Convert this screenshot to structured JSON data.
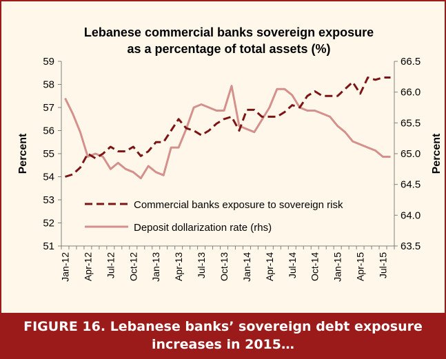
{
  "caption": {
    "line1": "FIGURE 16. Lebanese banks’ sovereign debt exposure",
    "line2": "increases in 2015…"
  },
  "colors": {
    "frame": "#9b1b1b",
    "background": "#fff8ea",
    "exposure_line": "#7b1414",
    "dollarization_line": "#d4908c"
  },
  "chart_data": {
    "type": "line",
    "title": "Lebanese commercial banks sovereign exposure as a percentage of total assets (%)",
    "title_lines": [
      "Lebanese commercial banks sovereign exposure",
      "as a percentage of total assets (%)"
    ],
    "ylabel": "Percent",
    "ylabel_right": "Percent",
    "ylim": [
      51,
      59
    ],
    "yticks": [
      51,
      52,
      53,
      54,
      55,
      56,
      57,
      58,
      59
    ],
    "ylim_right": [
      63.5,
      66.5
    ],
    "yticks_right": [
      "63.5",
      "64.0",
      "64.5",
      "65.0",
      "65.5",
      "66.0",
      "66.5"
    ],
    "x_tick_labels": [
      "Jan-12",
      "Apr-12",
      "Jul-12",
      "Oct-12",
      "Jan-13",
      "Apr-13",
      "Jul-13",
      "Oct-13",
      "Jan-14",
      "Apr-14",
      "Jul-14",
      "Oct-14",
      "Jan-15",
      "Apr-15",
      "Jul-15"
    ],
    "x": [
      "Jan-12",
      "Feb-12",
      "Mar-12",
      "Apr-12",
      "May-12",
      "Jun-12",
      "Jul-12",
      "Aug-12",
      "Sep-12",
      "Oct-12",
      "Nov-12",
      "Dec-12",
      "Jan-13",
      "Feb-13",
      "Mar-13",
      "Apr-13",
      "May-13",
      "Jun-13",
      "Jul-13",
      "Aug-13",
      "Sep-13",
      "Oct-13",
      "Nov-13",
      "Dec-13",
      "Jan-14",
      "Feb-14",
      "Mar-14",
      "Apr-14",
      "May-14",
      "Jun-14",
      "Jul-14",
      "Aug-14",
      "Sep-14",
      "Oct-14",
      "Nov-14",
      "Dec-14",
      "Jan-15",
      "Feb-15",
      "Mar-15",
      "Apr-15",
      "May-15",
      "Jun-15",
      "Jul-15",
      "Aug-15"
    ],
    "grid": false,
    "legend_position": "bottom",
    "series": [
      {
        "name": "Commercial banks exposure to sovereign risk",
        "axis": "left",
        "style": "dashed",
        "values": [
          54.0,
          54.1,
          54.4,
          55.0,
          54.8,
          55.0,
          55.3,
          55.1,
          55.1,
          55.3,
          54.9,
          55.1,
          55.5,
          55.5,
          56.0,
          56.5,
          56.1,
          56.0,
          55.8,
          56.0,
          56.3,
          56.5,
          56.6,
          56.0,
          56.9,
          56.9,
          56.6,
          56.6,
          56.6,
          56.8,
          57.1,
          57.0,
          57.5,
          57.7,
          57.5,
          57.5,
          57.5,
          57.8,
          58.1,
          57.6,
          58.3,
          58.2,
          58.3,
          58.3
        ]
      },
      {
        "name": "Deposit dollarization rate (rhs)",
        "axis": "right",
        "style": "solid",
        "values": [
          65.9,
          65.65,
          65.35,
          64.95,
          65.0,
          64.95,
          64.75,
          64.85,
          64.75,
          64.7,
          64.6,
          64.8,
          64.7,
          64.65,
          65.1,
          65.1,
          65.4,
          65.75,
          65.8,
          65.75,
          65.7,
          65.7,
          66.1,
          65.45,
          65.4,
          65.35,
          65.55,
          65.75,
          66.05,
          66.05,
          65.95,
          65.75,
          65.7,
          65.7,
          65.65,
          65.6,
          65.45,
          65.35,
          65.2,
          65.15,
          65.1,
          65.05,
          64.95,
          64.95
        ]
      }
    ]
  }
}
